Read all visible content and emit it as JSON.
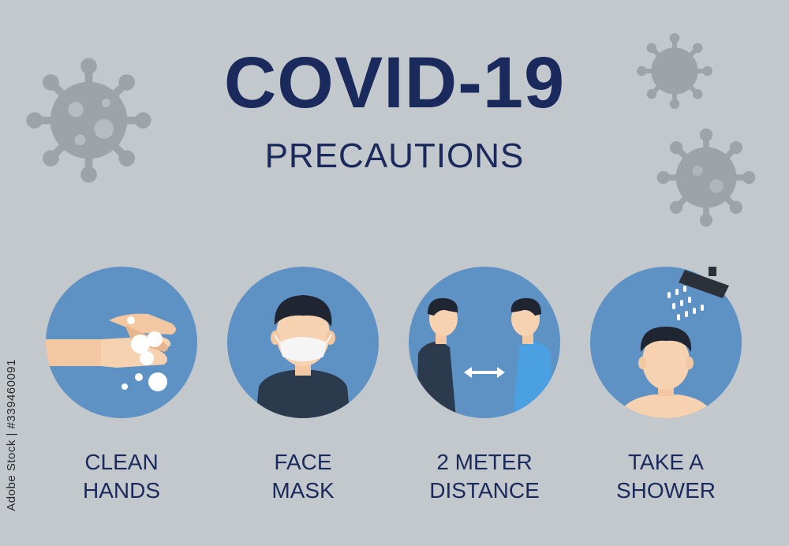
{
  "header": {
    "title": "COVID-19",
    "subtitle": "PRECAUTIONS"
  },
  "precautions": [
    {
      "line1": "CLEAN",
      "line2": "HANDS",
      "icon": "hand-washing-icon"
    },
    {
      "line1": "FACE",
      "line2": "MASK",
      "icon": "face-mask-icon"
    },
    {
      "line1": "2 METER",
      "line2": "DISTANCE",
      "icon": "social-distance-icon"
    },
    {
      "line1": "TAKE A",
      "line2": "SHOWER",
      "icon": "shower-icon"
    }
  ],
  "watermark": {
    "stock_id": "Adobe Stock | #339460091"
  },
  "colors": {
    "background": "#c3c8cd",
    "title": "#1a2a5c",
    "circle": "#5f92c4",
    "virus": "#9da3a8"
  }
}
